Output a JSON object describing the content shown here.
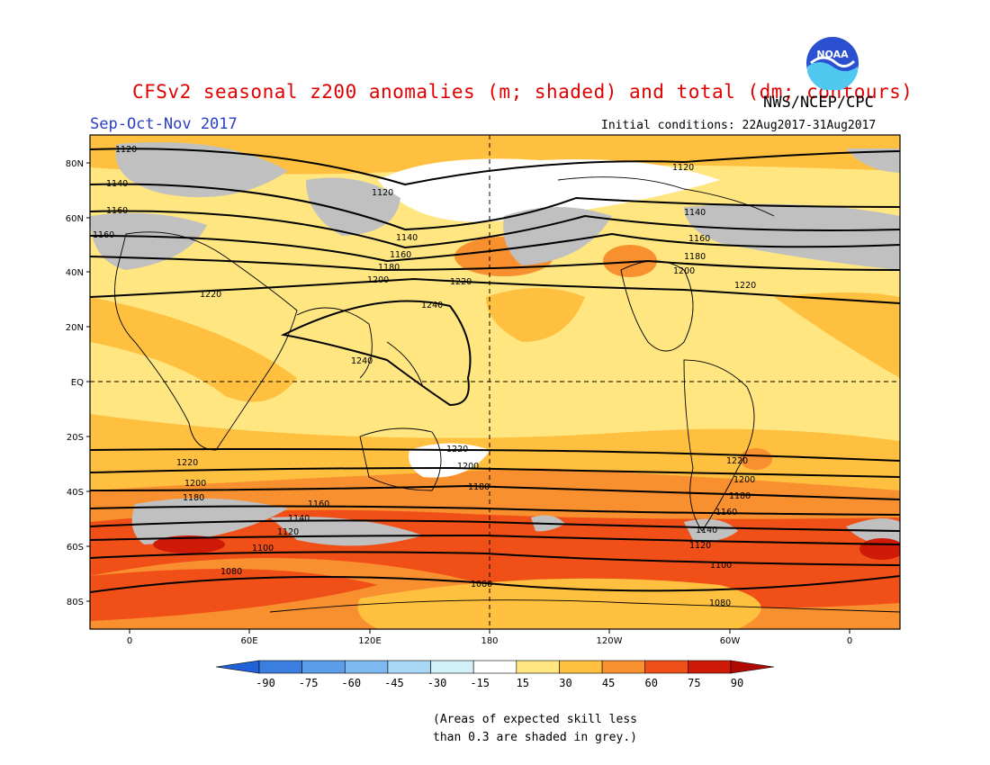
{
  "header": {
    "title": "CFSv2 seasonal z200 anomalies (m; shaded) and total (dm; contours)",
    "agency": "NWS/NCEP/CPC",
    "season": "Sep-Oct-Nov 2017",
    "initial_conditions": "Initial conditions: 22Aug2017-31Aug2017",
    "logo_text": "NOAA"
  },
  "axes": {
    "lat_labels": [
      "80N",
      "60N",
      "40N",
      "20N",
      "EQ",
      "20S",
      "40S",
      "60S",
      "80S"
    ],
    "lon_labels": [
      "0",
      "60E",
      "120E",
      "180",
      "120W",
      "60W",
      "0"
    ]
  },
  "contour_labels": [
    "1120",
    "1140",
    "1160",
    "1180",
    "1200",
    "1220",
    "1240",
    "1100",
    "1080"
  ],
  "colorbar": {
    "labels": [
      "-90",
      "-75",
      "-60",
      "-45",
      "-30",
      "-15",
      "15",
      "30",
      "45",
      "60",
      "75",
      "90"
    ],
    "colors": [
      "#2060d8",
      "#3a7fe0",
      "#5a9de8",
      "#7eb8f0",
      "#a8d8f5",
      "#d2f0f8",
      "#ffffff",
      "#ffe680",
      "#ffc040",
      "#f89030",
      "#f05018",
      "#d01a08",
      "#b00a00"
    ]
  },
  "footnote": {
    "line1": "(Areas of expected skill less",
    "line2": "than 0.3 are shaded in grey.)"
  }
}
